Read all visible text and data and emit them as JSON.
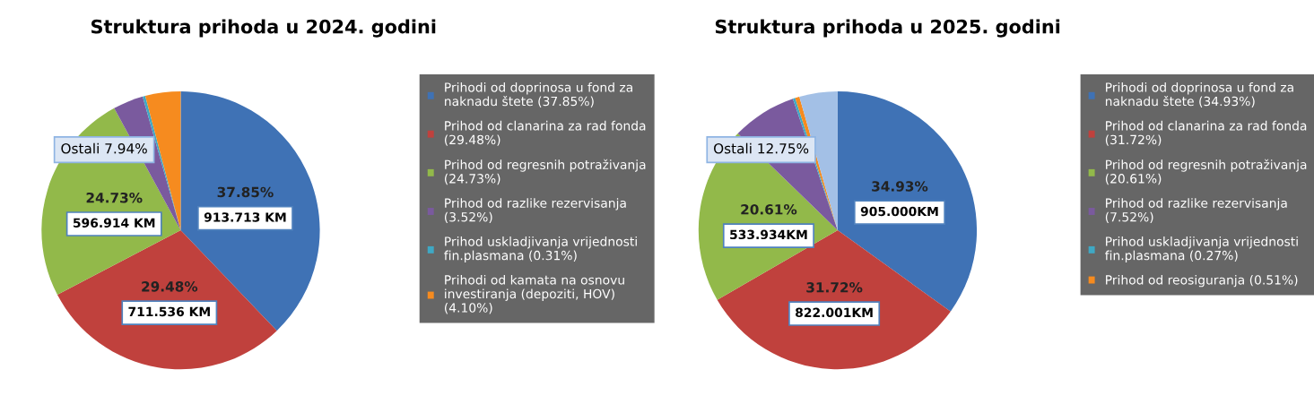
{
  "chart_data": [
    {
      "type": "pie",
      "title": "Struktura prihoda u 2024. godini",
      "categories": [
        "Prihodi od doprinosa u fond za naknadu štete (37.85%)",
        "Prihod od clanarina za rad fonda (29.48%)",
        "Prihod od regresnih potraživanja (24.73%)",
        "Prihod od razlike rezervisanja (3.52%)",
        "Prihod uskladjivanja vrijednosti fin.plasmana (0.31%)",
        "Prihodi od kamata na osnovu investiranja (depoziti, HOV) (4.10%)"
      ],
      "values": [
        37.85,
        29.48,
        24.73,
        3.52,
        0.31,
        4.1
      ],
      "colors": [
        "#3f72b5",
        "#c0413d",
        "#92b94a",
        "#7a5a9e",
        "#3fa8c4",
        "#f68b1f"
      ],
      "value_labels": [
        "37.85%",
        "29.48%",
        "24.73%",
        null,
        null,
        null
      ],
      "annotations": [
        {
          "text": "913.713 KM",
          "x": "Prihodi od doprinosa u fond za naknadu štete (37.85%)"
        },
        {
          "text": "711.536 KM",
          "x": "Prihod od clanarina za rad fonda (29.48%)"
        },
        {
          "text": "596.914 KM",
          "x": "Prihod od regresnih potraživanja (24.73%)"
        },
        "Ostali 7.94%"
      ],
      "legend": "right"
    },
    {
      "type": "pie",
      "title": "Struktura prihoda u 2025. godini",
      "categories": [
        "Prihodi od doprinosa u fond za naknadu štete (34.93%)",
        "Prihod od clanarina za rad fonda (31.72%)",
        "Prihod od regresnih potraživanja (20.61%)",
        "Prihod od razlike rezervisanja (7.52%)",
        "Prihod uskladjivanja vrijednosti fin.plasmana (0.27%)",
        "Prihod od reosiguranja (0.51%)",
        null
      ],
      "values": [
        34.93,
        31.72,
        20.61,
        7.52,
        0.27,
        0.51,
        4.44
      ],
      "colors": [
        "#3f72b5",
        "#c0413d",
        "#92b94a",
        "#7a5a9e",
        "#3fa8c4",
        "#f68b1f",
        "#a3c0e6"
      ],
      "value_labels": [
        "34.93%",
        "31.72%",
        "20.61%",
        null,
        null,
        null,
        null
      ],
      "annotations": [
        {
          "text": "905.000KM",
          "x": "Prihodi od doprinosa u fond za naknadu štete (34.93%)"
        },
        {
          "text": "822.001KM",
          "x": "Prihod od clanarina za rad fonda (31.72%)"
        },
        {
          "text": "533.934KM",
          "x": "Prihod od regresnih potraživanja (20.61%)"
        },
        "Ostali 12.75%"
      ],
      "legend": "right"
    }
  ]
}
